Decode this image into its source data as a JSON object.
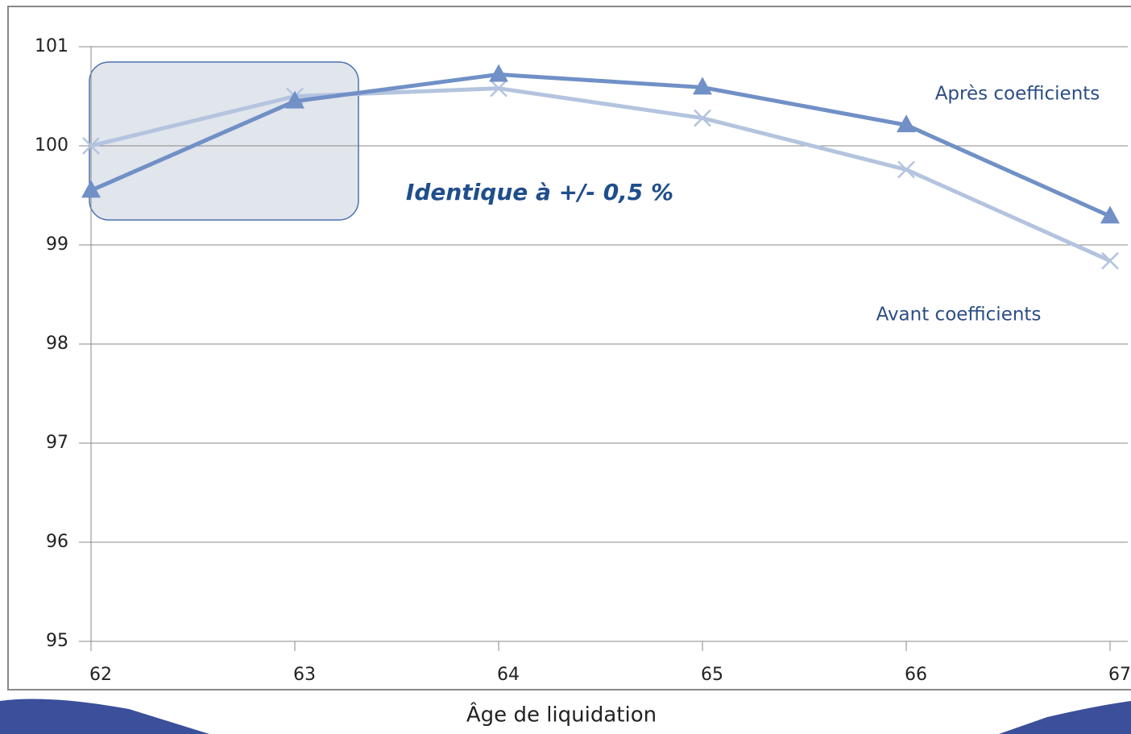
{
  "chart_data": {
    "type": "line",
    "x_label": "Âge de liquidation",
    "annotation": "Identique à +/- 0,5 %",
    "x": [
      62,
      63,
      64,
      65,
      66,
      67
    ],
    "series": [
      {
        "name": "Avant coefficients",
        "color": "#b4c4df",
        "marker": "x",
        "values": [
          100,
          100.5,
          100.58,
          100.28,
          99.76,
          98.84
        ]
      },
      {
        "name": "Après coefficients",
        "color": "#7090c6",
        "marker": "triangle",
        "values": [
          99.55,
          100.45,
          100.72,
          100.59,
          100.21,
          99.29
        ]
      }
    ],
    "xlim": [
      62,
      67
    ],
    "xticks": [
      62,
      63,
      64,
      65,
      66,
      67
    ],
    "ylim": [
      95,
      101
    ],
    "yticks": [
      95,
      96,
      97,
      98,
      99,
      100,
      101
    ],
    "grid": true
  }
}
